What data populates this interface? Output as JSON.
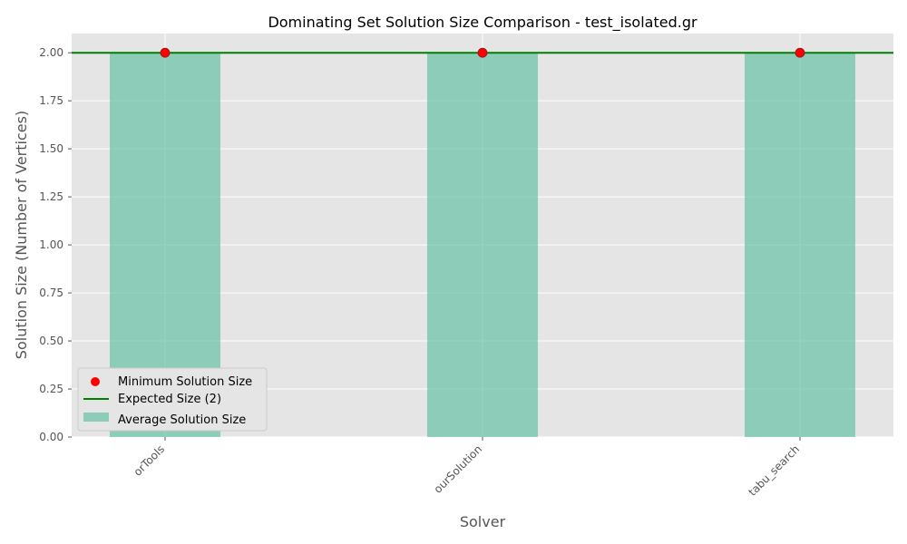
{
  "chart_data": {
    "type": "bar",
    "title": "Dominating Set Solution Size Comparison - test_isolated.gr",
    "xlabel": "Solver",
    "ylabel": "Solution Size (Number of Vertices)",
    "categories": [
      "orTools",
      "ourSolution",
      "tabu_search"
    ],
    "ylim": [
      0,
      2.1
    ],
    "yticks": [
      "0.00",
      "0.25",
      "0.50",
      "0.75",
      "1.00",
      "1.25",
      "1.50",
      "1.75",
      "2.00"
    ],
    "grid": true,
    "legend_position": "lower-left",
    "series": [
      {
        "name": "Average Solution Size",
        "kind": "bar",
        "values": [
          2,
          2,
          2
        ],
        "color": "#66c2a5"
      },
      {
        "name": "Minimum Solution Size",
        "kind": "scatter",
        "values": [
          2,
          2,
          2
        ],
        "color": "#ff0000"
      }
    ],
    "reference_line": {
      "name": "Expected Size (2)",
      "value": 2,
      "color": "#008000"
    },
    "legend": [
      "Minimum Solution Size",
      "Expected Size (2)",
      "Average Solution Size"
    ],
    "colors": {
      "plot_background": "#e5e5e5",
      "grid": "#ffffff"
    }
  }
}
